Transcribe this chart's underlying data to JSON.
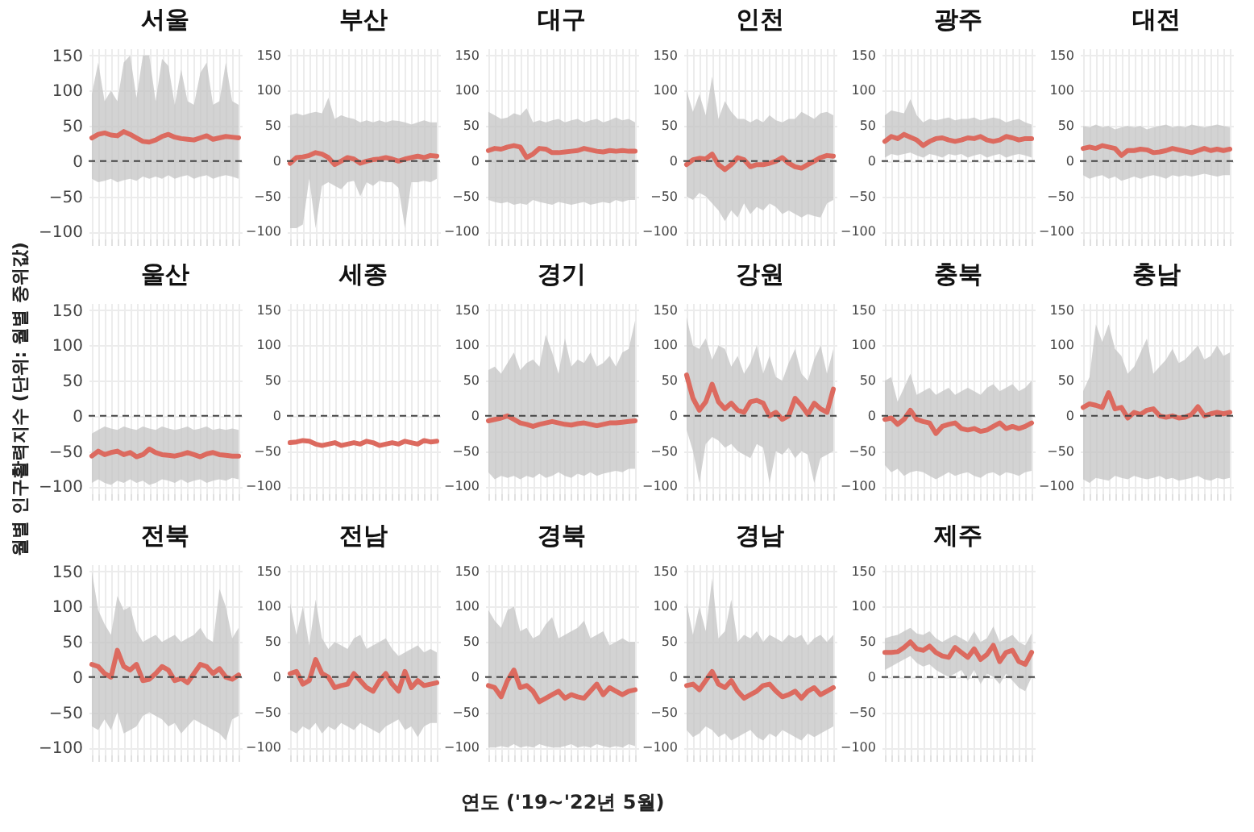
{
  "chart_data": [
    {
      "type": "line",
      "title": "서울",
      "categories": [
        null,
        null,
        null,
        null,
        null,
        null,
        null,
        null,
        null,
        null,
        null,
        null,
        null,
        null,
        null,
        null,
        null,
        null,
        null,
        null,
        null,
        null,
        null,
        null
      ],
      "series": [
        {
          "color": "#dc6a5f",
          "values": [
            33,
            38,
            40,
            37,
            36,
            42,
            38,
            33,
            28,
            27,
            30,
            35,
            38,
            34,
            32,
            31,
            30,
            33,
            36,
            31,
            33,
            35,
            34,
            33
          ],
          "lower": [
            -25,
            -30,
            -28,
            -25,
            -30,
            -27,
            -25,
            -28,
            -22,
            -25,
            -22,
            -25,
            -20,
            -25,
            -22,
            -20,
            -25,
            -22,
            -20,
            -25,
            -22,
            -20,
            -22,
            -25
          ],
          "upper": [
            95,
            140,
            85,
            100,
            85,
            140,
            150,
            90,
            150,
            150,
            85,
            145,
            135,
            80,
            130,
            85,
            80,
            125,
            140,
            80,
            85,
            140,
            85,
            80
          ]
        }
      ],
      "ylim": [
        -110,
        160
      ],
      "yticks": [
        -100,
        -50,
        0,
        50,
        100,
        150
      ],
      "ref_lines": [
        {
          "axis": "y",
          "value": 0,
          "line_style": "dashed"
        }
      ],
      "grid": true
    },
    {
      "type": "line",
      "title": "부산",
      "categories": [
        null,
        null,
        null,
        null,
        null,
        null,
        null,
        null,
        null,
        null,
        null,
        null,
        null,
        null,
        null,
        null,
        null,
        null,
        null,
        null,
        null,
        null,
        null,
        null
      ],
      "series": [
        {
          "color": "#dc6a5f",
          "values": [
            -3,
            5,
            6,
            8,
            12,
            10,
            5,
            -5,
            0,
            5,
            3,
            -3,
            0,
            2,
            3,
            5,
            3,
            0,
            3,
            5,
            7,
            5,
            8,
            7
          ],
          "lower": [
            -95,
            -95,
            -90,
            -25,
            -95,
            -35,
            -30,
            -35,
            -40,
            -30,
            -28,
            -50,
            -30,
            -35,
            -28,
            -30,
            -30,
            -38,
            -95,
            -30,
            -30,
            -28,
            -30,
            -25
          ],
          "upper": [
            65,
            68,
            65,
            68,
            70,
            68,
            90,
            60,
            65,
            62,
            60,
            55,
            58,
            55,
            58,
            55,
            58,
            57,
            55,
            52,
            55,
            58,
            55,
            55
          ]
        }
      ],
      "ylim": [
        -110,
        160
      ],
      "yticks": [
        -100,
        -50,
        0,
        50,
        100,
        150
      ],
      "ref_lines": [
        {
          "axis": "y",
          "value": 0,
          "line_style": "dashed"
        }
      ],
      "grid": true
    },
    {
      "type": "line",
      "title": "대구",
      "categories": [
        null,
        null,
        null,
        null,
        null,
        null,
        null,
        null,
        null,
        null,
        null,
        null,
        null,
        null,
        null,
        null,
        null,
        null,
        null,
        null,
        null,
        null,
        null,
        null
      ],
      "series": [
        {
          "color": "#dc6a5f",
          "values": [
            15,
            18,
            17,
            20,
            22,
            20,
            5,
            10,
            18,
            17,
            12,
            12,
            13,
            14,
            15,
            18,
            16,
            14,
            13,
            15,
            14,
            15,
            14,
            14
          ],
          "lower": [
            -55,
            -58,
            -60,
            -58,
            -62,
            -60,
            -62,
            -55,
            -58,
            -60,
            -62,
            -58,
            -60,
            -62,
            -60,
            -58,
            -62,
            -60,
            -58,
            -60,
            -55,
            -58,
            -55,
            -55
          ],
          "upper": [
            70,
            65,
            60,
            62,
            68,
            65,
            75,
            55,
            58,
            55,
            58,
            60,
            55,
            58,
            60,
            55,
            58,
            60,
            55,
            58,
            62,
            58,
            60,
            55
          ]
        }
      ],
      "ylim": [
        -110,
        160
      ],
      "yticks": [
        -100,
        -50,
        0,
        50,
        100,
        150
      ],
      "ref_lines": [
        {
          "axis": "y",
          "value": 0,
          "line_style": "dashed"
        }
      ],
      "grid": true
    },
    {
      "type": "line",
      "title": "인천",
      "categories": [
        null,
        null,
        null,
        null,
        null,
        null,
        null,
        null,
        null,
        null,
        null,
        null,
        null,
        null,
        null,
        null,
        null,
        null,
        null,
        null,
        null,
        null,
        null,
        null
      ],
      "series": [
        {
          "color": "#dc6a5f",
          "values": [
            -5,
            2,
            4,
            3,
            10,
            -5,
            -12,
            -5,
            5,
            2,
            -8,
            -5,
            -5,
            -3,
            0,
            5,
            -3,
            -8,
            -10,
            -5,
            0,
            5,
            8,
            7
          ],
          "lower": [
            -50,
            -55,
            -45,
            -50,
            -60,
            -70,
            -85,
            -70,
            -80,
            -60,
            -75,
            -65,
            -70,
            -60,
            -65,
            -75,
            -70,
            -75,
            -80,
            -75,
            -78,
            -80,
            -60,
            -55
          ],
          "upper": [
            100,
            70,
            95,
            65,
            120,
            60,
            85,
            70,
            60,
            60,
            55,
            60,
            55,
            65,
            58,
            55,
            60,
            60,
            70,
            65,
            60,
            68,
            70,
            65
          ]
        }
      ],
      "ylim": [
        -110,
        160
      ],
      "yticks": [
        -100,
        -50,
        0,
        50,
        100,
        150
      ],
      "ref_lines": [
        {
          "axis": "y",
          "value": 0,
          "line_style": "dashed"
        }
      ],
      "grid": true
    },
    {
      "type": "line",
      "title": "광주",
      "categories": [
        null,
        null,
        null,
        null,
        null,
        null,
        null,
        null,
        null,
        null,
        null,
        null,
        null,
        null,
        null,
        null,
        null,
        null,
        null,
        null,
        null,
        null,
        null,
        null
      ],
      "series": [
        {
          "color": "#dc6a5f",
          "values": [
            28,
            35,
            32,
            38,
            34,
            30,
            22,
            28,
            32,
            33,
            30,
            28,
            30,
            33,
            32,
            35,
            30,
            28,
            30,
            35,
            33,
            30,
            32,
            32
          ],
          "lower": [
            5,
            10,
            8,
            10,
            12,
            8,
            5,
            10,
            8,
            5,
            10,
            8,
            10,
            5,
            8,
            10,
            5,
            8,
            10,
            5,
            8,
            10,
            8,
            5
          ],
          "upper": [
            65,
            72,
            70,
            68,
            88,
            65,
            55,
            60,
            58,
            60,
            62,
            58,
            60,
            60,
            62,
            58,
            60,
            62,
            60,
            55,
            58,
            60,
            55,
            52
          ]
        }
      ],
      "ylim": [
        -110,
        160
      ],
      "yticks": [
        -100,
        -50,
        0,
        50,
        100,
        150
      ],
      "ref_lines": [
        {
          "axis": "y",
          "value": 0,
          "line_style": "dashed"
        }
      ],
      "grid": true
    },
    {
      "type": "line",
      "title": "대전",
      "categories": [
        null,
        null,
        null,
        null,
        null,
        null,
        null,
        null,
        null,
        null,
        null,
        null,
        null,
        null,
        null,
        null,
        null,
        null,
        null,
        null,
        null,
        null,
        null,
        null
      ],
      "series": [
        {
          "color": "#dc6a5f",
          "values": [
            18,
            20,
            18,
            22,
            20,
            18,
            8,
            15,
            15,
            17,
            16,
            12,
            13,
            15,
            18,
            16,
            14,
            12,
            15,
            18,
            15,
            17,
            15,
            17
          ],
          "lower": [
            -20,
            -25,
            -22,
            -20,
            -25,
            -22,
            -28,
            -25,
            -22,
            -25,
            -22,
            -20,
            -22,
            -25,
            -20,
            -22,
            -20,
            -22,
            -20,
            -18,
            -20,
            -22,
            -20,
            -20
          ],
          "upper": [
            50,
            48,
            52,
            48,
            50,
            45,
            48,
            50,
            48,
            50,
            45,
            48,
            50,
            52,
            48,
            50,
            48,
            52,
            50,
            48,
            50,
            52,
            50,
            48
          ]
        }
      ],
      "ylim": [
        -110,
        160
      ],
      "yticks": [
        -100,
        -50,
        0,
        50,
        100,
        150
      ],
      "ref_lines": [
        {
          "axis": "y",
          "value": 0,
          "line_style": "dashed"
        }
      ],
      "grid": true
    },
    {
      "type": "line",
      "title": "울산",
      "ylabel": "월별 인구활력지수 (단위: 월별 중위값)",
      "categories": [
        null,
        null,
        null,
        null,
        null,
        null,
        null,
        null,
        null,
        null,
        null,
        null,
        null,
        null,
        null,
        null,
        null,
        null,
        null,
        null,
        null,
        null,
        null,
        null
      ],
      "series": [
        {
          "color": "#dc6a5f",
          "values": [
            -57,
            -50,
            -55,
            -52,
            -50,
            -55,
            -52,
            -58,
            -55,
            -47,
            -52,
            -55,
            -56,
            -57,
            -55,
            -52,
            -55,
            -58,
            -54,
            -52,
            -55,
            -56,
            -57,
            -57
          ],
          "lower": [
            -95,
            -90,
            -95,
            -98,
            -92,
            -95,
            -90,
            -95,
            -92,
            -98,
            -95,
            -90,
            -92,
            -95,
            -90,
            -95,
            -92,
            -90,
            -95,
            -92,
            -90,
            -92,
            -88,
            -90
          ],
          "upper": [
            -25,
            -20,
            -15,
            -18,
            -20,
            -15,
            -18,
            -20,
            -15,
            -18,
            -20,
            -15,
            -18,
            -20,
            -18,
            -15,
            -20,
            -18,
            -15,
            -20,
            -18,
            -20,
            -18,
            -20
          ]
        }
      ],
      "ylim": [
        -110,
        160
      ],
      "yticks": [
        -100,
        -50,
        0,
        50,
        100,
        150
      ],
      "ref_lines": [
        {
          "axis": "y",
          "value": 0,
          "line_style": "dashed"
        }
      ],
      "grid": true
    },
    {
      "type": "line",
      "title": "세종",
      "categories": [
        null,
        null,
        null,
        null,
        null,
        null,
        null,
        null,
        null,
        null,
        null,
        null,
        null,
        null,
        null,
        null,
        null,
        null,
        null,
        null,
        null,
        null,
        null,
        null
      ],
      "series": [
        {
          "color": "#dc6a5f",
          "values": [
            -38,
            -37,
            -35,
            -36,
            -40,
            -42,
            -40,
            -38,
            -42,
            -40,
            -38,
            -40,
            -36,
            -38,
            -42,
            -40,
            -38,
            -40,
            -36,
            -38,
            -40,
            -35,
            -37,
            -36
          ]
        }
      ],
      "ylim": [
        -110,
        160
      ],
      "yticks": [
        -100,
        -50,
        0,
        50,
        100,
        150
      ],
      "ref_lines": [
        {
          "axis": "y",
          "value": 0,
          "line_style": "dashed"
        }
      ],
      "grid": true
    },
    {
      "type": "line",
      "title": "경기",
      "categories": [
        null,
        null,
        null,
        null,
        null,
        null,
        null,
        null,
        null,
        null,
        null,
        null,
        null,
        null,
        null,
        null,
        null,
        null,
        null,
        null,
        null,
        null,
        null,
        null
      ],
      "series": [
        {
          "color": "#dc6a5f",
          "values": [
            -7,
            -5,
            -3,
            0,
            -5,
            -10,
            -12,
            -15,
            -12,
            -10,
            -8,
            -10,
            -12,
            -13,
            -11,
            -10,
            -12,
            -14,
            -12,
            -10,
            -10,
            -9,
            -8,
            -7
          ],
          "lower": [
            -80,
            -90,
            -85,
            -88,
            -85,
            -90,
            -85,
            -88,
            -82,
            -88,
            -85,
            -80,
            -85,
            -88,
            -82,
            -85,
            -80,
            -85,
            -82,
            -80,
            -78,
            -80,
            -75,
            -75
          ],
          "upper": [
            65,
            70,
            60,
            75,
            90,
            65,
            75,
            80,
            70,
            115,
            90,
            60,
            110,
            70,
            80,
            75,
            90,
            70,
            75,
            85,
            70,
            90,
            95,
            135
          ]
        }
      ],
      "ylim": [
        -110,
        160
      ],
      "yticks": [
        -100,
        -50,
        0,
        50,
        100,
        150
      ],
      "ref_lines": [
        {
          "axis": "y",
          "value": 0,
          "line_style": "dashed"
        }
      ],
      "grid": true
    },
    {
      "type": "line",
      "title": "강원",
      "categories": [
        null,
        null,
        null,
        null,
        null,
        null,
        null,
        null,
        null,
        null,
        null,
        null,
        null,
        null,
        null,
        null,
        null,
        null,
        null,
        null,
        null,
        null,
        null,
        null
      ],
      "series": [
        {
          "color": "#dc6a5f",
          "values": [
            58,
            25,
            8,
            20,
            45,
            20,
            10,
            18,
            8,
            5,
            20,
            22,
            18,
            0,
            5,
            -5,
            0,
            25,
            15,
            2,
            18,
            10,
            5,
            38
          ],
          "lower": [
            -20,
            -50,
            -95,
            -40,
            -30,
            -35,
            -45,
            -40,
            -50,
            -55,
            -60,
            -40,
            -45,
            -95,
            -50,
            -55,
            -45,
            -60,
            -50,
            -55,
            -95,
            -60,
            -55,
            -50
          ],
          "upper": [
            140,
            100,
            95,
            110,
            80,
            100,
            95,
            70,
            85,
            60,
            75,
            100,
            60,
            85,
            55,
            50,
            75,
            95,
            60,
            50,
            80,
            100,
            60,
            95
          ]
        }
      ],
      "ylim": [
        -110,
        160
      ],
      "yticks": [
        -100,
        -50,
        0,
        50,
        100,
        150
      ],
      "ref_lines": [
        {
          "axis": "y",
          "value": 0,
          "line_style": "dashed"
        }
      ],
      "grid": true
    },
    {
      "type": "line",
      "title": "충북",
      "categories": [
        null,
        null,
        null,
        null,
        null,
        null,
        null,
        null,
        null,
        null,
        null,
        null,
        null,
        null,
        null,
        null,
        null,
        null,
        null,
        null,
        null,
        null,
        null,
        null
      ],
      "series": [
        {
          "color": "#dc6a5f",
          "values": [
            -5,
            -3,
            -12,
            -5,
            8,
            -5,
            -8,
            -10,
            -25,
            -15,
            -12,
            -10,
            -18,
            -20,
            -18,
            -22,
            -20,
            -15,
            -10,
            -18,
            -15,
            -18,
            -15,
            -10
          ],
          "lower": [
            -70,
            -80,
            -75,
            -85,
            -80,
            -78,
            -80,
            -85,
            -90,
            -85,
            -80,
            -85,
            -82,
            -80,
            -85,
            -88,
            -82,
            -80,
            -85,
            -80,
            -82,
            -85,
            -80,
            -78
          ],
          "upper": [
            50,
            55,
            20,
            40,
            60,
            30,
            35,
            40,
            30,
            35,
            40,
            30,
            35,
            40,
            35,
            30,
            40,
            45,
            35,
            40,
            45,
            35,
            40,
            50
          ]
        }
      ],
      "ylim": [
        -110,
        160
      ],
      "yticks": [
        -100,
        -50,
        0,
        50,
        100,
        150
      ],
      "ref_lines": [
        {
          "axis": "y",
          "value": 0,
          "line_style": "dashed"
        }
      ],
      "grid": true
    },
    {
      "type": "line",
      "title": "충남",
      "categories": [
        null,
        null,
        null,
        null,
        null,
        null,
        null,
        null,
        null,
        null,
        null,
        null,
        null,
        null,
        null,
        null,
        null,
        null,
        null,
        null,
        null,
        null,
        null,
        null
      ],
      "series": [
        {
          "color": "#dc6a5f",
          "values": [
            12,
            17,
            15,
            12,
            33,
            10,
            12,
            -3,
            5,
            2,
            8,
            10,
            0,
            -2,
            0,
            -3,
            -2,
            2,
            13,
            0,
            3,
            5,
            3,
            5
          ],
          "lower": [
            -90,
            -95,
            -88,
            -90,
            -92,
            -85,
            -88,
            -90,
            -85,
            -88,
            -90,
            -88,
            -85,
            -90,
            -88,
            -92,
            -90,
            -88,
            -85,
            -90,
            -92,
            -88,
            -90,
            -88
          ],
          "upper": [
            35,
            55,
            130,
            105,
            130,
            95,
            85,
            60,
            70,
            90,
            110,
            60,
            70,
            80,
            95,
            75,
            80,
            90,
            100,
            80,
            85,
            100,
            85,
            90
          ]
        }
      ],
      "ylim": [
        -110,
        160
      ],
      "yticks": [
        -100,
        -50,
        0,
        50,
        100,
        150
      ],
      "ref_lines": [
        {
          "axis": "y",
          "value": 0,
          "line_style": "dashed"
        }
      ],
      "grid": true
    },
    {
      "type": "line",
      "title": "전북",
      "categories": [
        null,
        null,
        null,
        null,
        null,
        null,
        null,
        null,
        null,
        null,
        null,
        null,
        null,
        null,
        null,
        null,
        null,
        null,
        null,
        null,
        null,
        null,
        null,
        null
      ],
      "series": [
        {
          "color": "#dc6a5f",
          "values": [
            18,
            15,
            5,
            0,
            38,
            15,
            10,
            18,
            -5,
            -3,
            5,
            15,
            10,
            -5,
            -2,
            -8,
            5,
            18,
            15,
            5,
            12,
            0,
            -3,
            3
          ],
          "lower": [
            -70,
            -75,
            -60,
            -75,
            -50,
            -80,
            -75,
            -70,
            -55,
            -50,
            -55,
            -60,
            -70,
            -65,
            -80,
            -70,
            -60,
            -65,
            -70,
            -75,
            -80,
            -90,
            -60,
            -55
          ],
          "upper": [
            150,
            95,
            75,
            60,
            115,
            95,
            100,
            65,
            50,
            55,
            60,
            50,
            55,
            60,
            50,
            55,
            60,
            70,
            55,
            50,
            125,
            100,
            55,
            70
          ]
        }
      ],
      "ylim": [
        -110,
        160
      ],
      "yticks": [
        -100,
        -50,
        0,
        50,
        100,
        150
      ],
      "ref_lines": [
        {
          "axis": "y",
          "value": 0,
          "line_style": "dashed"
        }
      ],
      "grid": true
    },
    {
      "type": "line",
      "title": "전남",
      "categories": [
        null,
        null,
        null,
        null,
        null,
        null,
        null,
        null,
        null,
        null,
        null,
        null,
        null,
        null,
        null,
        null,
        null,
        null,
        null,
        null,
        null,
        null,
        null,
        null
      ],
      "series": [
        {
          "color": "#dc6a5f",
          "values": [
            5,
            8,
            -10,
            -5,
            25,
            5,
            0,
            -15,
            -12,
            -10,
            5,
            -5,
            -15,
            -20,
            -5,
            5,
            -10,
            -20,
            8,
            -15,
            -5,
            -12,
            -10,
            -8
          ],
          "lower": [
            -75,
            -80,
            -70,
            -75,
            -65,
            -80,
            -70,
            -75,
            -65,
            -70,
            -75,
            -65,
            -70,
            -75,
            -80,
            -70,
            -65,
            -60,
            -75,
            -70,
            -85,
            -70,
            -65,
            -65
          ],
          "upper": [
            105,
            60,
            100,
            45,
            110,
            55,
            40,
            50,
            45,
            40,
            55,
            60,
            40,
            45,
            50,
            55,
            40,
            30,
            35,
            40,
            45,
            35,
            40,
            35
          ]
        }
      ],
      "ylim": [
        -110,
        160
      ],
      "yticks": [
        -100,
        -50,
        0,
        50,
        100,
        150
      ],
      "ref_lines": [
        {
          "axis": "y",
          "value": 0,
          "line_style": "dashed"
        }
      ],
      "grid": true
    },
    {
      "type": "line",
      "title": "경북",
      "xlabel": "연도 ('19~'22년 5월)",
      "categories": [
        null,
        null,
        null,
        null,
        null,
        null,
        null,
        null,
        null,
        null,
        null,
        null,
        null,
        null,
        null,
        null,
        null,
        null,
        null,
        null,
        null,
        null,
        null,
        null
      ],
      "series": [
        {
          "color": "#dc6a5f",
          "values": [
            -12,
            -15,
            -28,
            -5,
            10,
            -15,
            -12,
            -20,
            -35,
            -30,
            -25,
            -20,
            -30,
            -25,
            -28,
            -30,
            -20,
            -10,
            -25,
            -15,
            -20,
            -25,
            -20,
            -18
          ],
          "lower": [
            -100,
            -100,
            -98,
            -100,
            -95,
            -100,
            -98,
            -100,
            -95,
            -98,
            -100,
            -100,
            -98,
            -95,
            -100,
            -98,
            -100,
            -95,
            -98,
            -100,
            -98,
            -100,
            -95,
            -98
          ],
          "upper": [
            95,
            80,
            70,
            95,
            100,
            65,
            70,
            55,
            60,
            75,
            85,
            55,
            60,
            65,
            70,
            80,
            55,
            60,
            65,
            45,
            50,
            55,
            50,
            50
          ]
        }
      ],
      "ylim": [
        -110,
        160
      ],
      "yticks": [
        -100,
        -50,
        0,
        50,
        100,
        150
      ],
      "ref_lines": [
        {
          "axis": "y",
          "value": 0,
          "line_style": "dashed"
        }
      ],
      "grid": true
    },
    {
      "type": "line",
      "title": "경남",
      "categories": [
        null,
        null,
        null,
        null,
        null,
        null,
        null,
        null,
        null,
        null,
        null,
        null,
        null,
        null,
        null,
        null,
        null,
        null,
        null,
        null,
        null,
        null,
        null,
        null
      ],
      "series": [
        {
          "color": "#dc6a5f",
          "values": [
            -12,
            -10,
            -18,
            -5,
            8,
            -10,
            -15,
            -5,
            -20,
            -30,
            -25,
            -20,
            -12,
            -10,
            -20,
            -28,
            -25,
            -20,
            -30,
            -20,
            -15,
            -25,
            -20,
            -15
          ],
          "lower": [
            -75,
            -85,
            -80,
            -70,
            -75,
            -85,
            -80,
            -90,
            -85,
            -80,
            -75,
            -85,
            -90,
            -80,
            -85,
            -75,
            -80,
            -85,
            -90,
            -80,
            -85,
            -80,
            -75,
            -70
          ],
          "upper": [
            105,
            60,
            100,
            65,
            140,
            55,
            65,
            110,
            50,
            60,
            55,
            65,
            50,
            60,
            55,
            50,
            60,
            55,
            60,
            45,
            55,
            60,
            50,
            60
          ]
        }
      ],
      "ylim": [
        -110,
        160
      ],
      "yticks": [
        -100,
        -50,
        0,
        50,
        100,
        150
      ],
      "ref_lines": [
        {
          "axis": "y",
          "value": 0,
          "line_style": "dashed"
        }
      ],
      "grid": true
    },
    {
      "type": "line",
      "title": "제주",
      "categories": [
        null,
        null,
        null,
        null,
        null,
        null,
        null,
        null,
        null,
        null,
        null,
        null,
        null,
        null,
        null,
        null,
        null,
        null,
        null,
        null,
        null,
        null,
        null,
        null
      ],
      "series": [
        {
          "color": "#dc6a5f",
          "values": [
            35,
            35,
            36,
            42,
            50,
            40,
            38,
            44,
            35,
            30,
            28,
            42,
            35,
            28,
            40,
            25,
            32,
            45,
            22,
            35,
            38,
            22,
            18,
            35
          ],
          "lower": [
            10,
            15,
            20,
            25,
            30,
            20,
            15,
            18,
            10,
            5,
            0,
            5,
            10,
            -5,
            10,
            -10,
            5,
            0,
            -10,
            5,
            -5,
            -15,
            -20,
            0
          ],
          "upper": [
            55,
            58,
            60,
            65,
            70,
            62,
            60,
            65,
            55,
            50,
            55,
            60,
            55,
            50,
            65,
            50,
            55,
            72,
            50,
            55,
            60,
            50,
            45,
            62
          ]
        }
      ],
      "ylim": [
        -110,
        160
      ],
      "yticks": [
        -100,
        -50,
        0,
        50,
        100,
        150
      ],
      "ref_lines": [
        {
          "axis": "y",
          "value": 0,
          "line_style": "dashed"
        }
      ],
      "grid": true
    }
  ]
}
